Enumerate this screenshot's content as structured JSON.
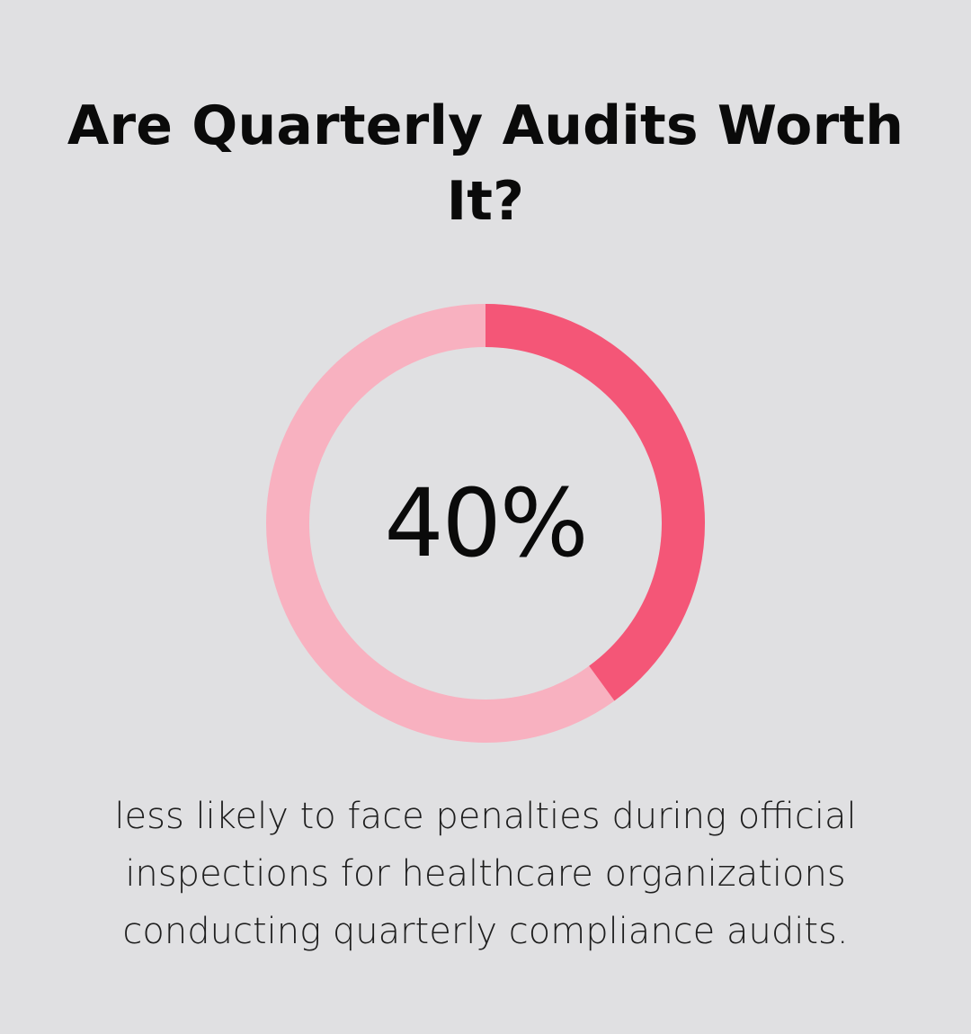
{
  "title": "Are Quarterly Audits Worth It?",
  "chart_data": {
    "type": "pie",
    "variant": "donut",
    "value": 40,
    "unit": "%",
    "value_label": "40%",
    "caption": "less likely to face penalties during official inspections for healthcare organizations conducting quarterly compliance audits.",
    "colors": {
      "highlight": "#f45677",
      "track": "#f8b1c0",
      "background": "#e0e0e2"
    }
  }
}
